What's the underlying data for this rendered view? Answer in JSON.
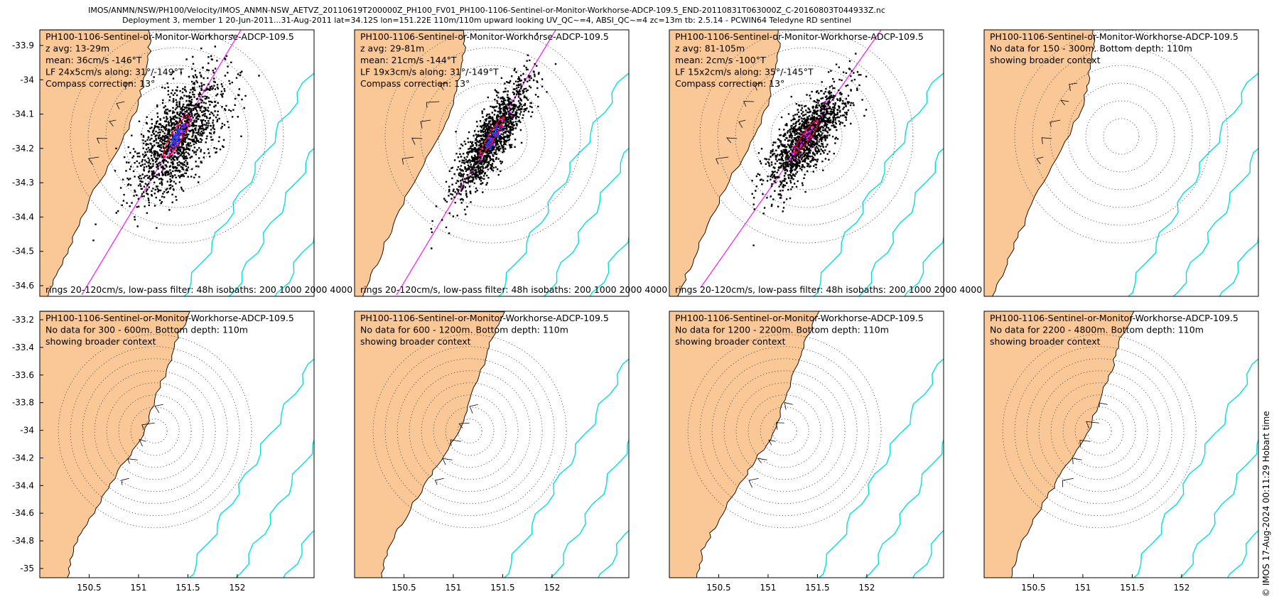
{
  "header": {
    "line1": "IMOS/ANMN/NSW/PH100/Velocity/IMOS_ANMN-NSW_AETVZ_20110619T200000Z_PH100_FV01_PH100-1106-Sentinel-or-Monitor-Workhorse-ADCP-109.5_END-20110831T063000Z_C-20160803T044933Z.nc",
    "line2": "Deployment 3, member 1 20-Jun-2011...31-Aug-2011 lat=34.12S lon=151.22E 110m/110m upward looking UV_QC~=4, ABSI_QC~=4 zc=13m tb: 2.5.14 - PCWIN64 Teledyne RD sentinel"
  },
  "credit": "© IMOS 17-Aug-2024 00:11:29 Hobart time",
  "colors": {
    "land": "#fac896",
    "isobath": "#00e0e0",
    "axis_line": "#ff00ff",
    "scatter": "#000000",
    "mean_arrows": "#1f3ff0",
    "ellipse": "#ff0000",
    "lowpass_points": "#ff00ff"
  },
  "chart_data": [
    {
      "type": "scatter",
      "panel": "row1-col1",
      "lines": [
        "PH100-1106-Sentinel-or-Monitor-Workhorse-ADCP-109.5",
        "z avg: 13-29m",
        "mean: 36cm/s -146°T",
        "LF 24x5cm/s along: 31°/-149°T",
        "Compass correction: 13°"
      ],
      "footer": "rings 20-120cm/s, low-pass filter: 48h isobaths: 200 1000 2000 4000",
      "y_ticks": [
        "-33.9",
        "-34",
        "-34.1",
        "-34.2",
        "-34.3",
        "-34.4",
        "-34.5",
        "-34.6"
      ],
      "has_data": true,
      "cloud_spread": 1.0,
      "cloud_length": 0.85,
      "major_axis_deg": 31,
      "rings_cm_s": [
        20,
        40,
        60,
        80,
        100,
        120
      ],
      "isobaths_m": [
        200,
        1000,
        2000,
        4000
      ]
    },
    {
      "type": "scatter",
      "panel": "row1-col2",
      "lines": [
        "PH100-1106-Sentinel-or-Monitor-Workhorse-ADCP-109.5",
        "z avg: 29-81m",
        "mean: 21cm/s -144°T",
        "LF 19x3cm/s along: 31°/-149°T",
        "Compass correction: 13°"
      ],
      "footer": "rings 20-120cm/s, low-pass filter: 48h isobaths: 200 1000 2000 4000",
      "y_ticks": [],
      "has_data": true,
      "cloud_spread": 0.55,
      "cloud_length": 0.8,
      "major_axis_deg": 31,
      "rings_cm_s": [
        20,
        40,
        60,
        80,
        100,
        120
      ],
      "isobaths_m": [
        200,
        1000,
        2000,
        4000
      ]
    },
    {
      "type": "scatter",
      "panel": "row1-col3",
      "lines": [
        "PH100-1106-Sentinel-or-Monitor-Workhorse-ADCP-109.5",
        "z avg: 81-105m",
        "mean: 2cm/s -100°T",
        "LF 15x2cm/s along: 35°/-145°T",
        "Compass correction: 13°"
      ],
      "footer": "rings 20-120cm/s, low-pass filter: 48h isobaths: 200 1000 2000 4000",
      "y_ticks": [],
      "has_data": true,
      "cloud_spread": 0.7,
      "cloud_length": 0.7,
      "major_axis_deg": 35,
      "rings_cm_s": [
        20,
        40,
        60,
        80,
        100,
        120
      ],
      "isobaths_m": [
        200,
        1000,
        2000,
        4000
      ]
    },
    {
      "type": "scatter",
      "panel": "row1-col4",
      "lines": [
        "PH100-1106-Sentinel-or-Monitor-Workhorse-ADCP-109.5",
        "No data for 150 - 300m. Bottom depth: 110m",
        "showing broader context"
      ],
      "footer": "",
      "y_ticks": [],
      "has_data": false,
      "rings_cm_s": [
        20,
        40,
        60,
        80,
        100,
        120
      ],
      "isobaths_m": [
        200,
        1000,
        2000,
        4000
      ]
    },
    {
      "type": "scatter",
      "panel": "row2-col1",
      "lines": [
        "PH100-1106-Sentinel-or-Monitor-Workhorse-ADCP-109.5",
        "No data for 300 - 600m. Bottom depth: 110m",
        "showing broader context"
      ],
      "footer": "",
      "y_ticks": [
        "-33.2",
        "-33.4",
        "-33.6",
        "-33.8",
        "-34",
        "-34.2",
        "-34.4",
        "-34.6",
        "-34.8",
        "-35"
      ],
      "x_ticks": [
        "150.5",
        "151",
        "151.5",
        "152"
      ],
      "has_data": false,
      "rings_cm_s": [
        20,
        40,
        60,
        80,
        100,
        120
      ],
      "isobaths_m": [
        200,
        1000,
        2000,
        4000
      ]
    },
    {
      "type": "scatter",
      "panel": "row2-col2",
      "lines": [
        "PH100-1106-Sentinel-or-Monitor-Workhorse-ADCP-109.5",
        "No data for 600 - 1200m. Bottom depth: 110m",
        "showing broader context"
      ],
      "footer": "",
      "y_ticks": [],
      "x_ticks": [
        "150.5",
        "151",
        "151.5",
        "152"
      ],
      "has_data": false,
      "rings_cm_s": [
        20,
        40,
        60,
        80,
        100,
        120
      ],
      "isobaths_m": [
        200,
        1000,
        2000,
        4000
      ]
    },
    {
      "type": "scatter",
      "panel": "row2-col3",
      "lines": [
        "PH100-1106-Sentinel-or-Monitor-Workhorse-ADCP-109.5",
        "No data for 1200 - 2200m. Bottom depth: 110m",
        "showing broader context"
      ],
      "footer": "",
      "y_ticks": [],
      "x_ticks": [
        "150.5",
        "151",
        "151.5",
        "152"
      ],
      "has_data": false,
      "rings_cm_s": [
        20,
        40,
        60,
        80,
        100,
        120
      ],
      "isobaths_m": [
        200,
        1000,
        2000,
        4000
      ]
    },
    {
      "type": "scatter",
      "panel": "row2-col4",
      "lines": [
        "PH100-1106-Sentinel-or-Monitor-Workhorse-ADCP-109.5",
        "No data for 2200 - 4800m. Bottom depth: 110m",
        "showing broader context"
      ],
      "footer": "",
      "y_ticks": [],
      "x_ticks": [
        "150.5",
        "151",
        "151.5",
        "152"
      ],
      "has_data": false,
      "rings_cm_s": [
        20,
        40,
        60,
        80,
        100,
        120
      ],
      "isobaths_m": [
        200,
        1000,
        2000,
        4000
      ]
    }
  ]
}
